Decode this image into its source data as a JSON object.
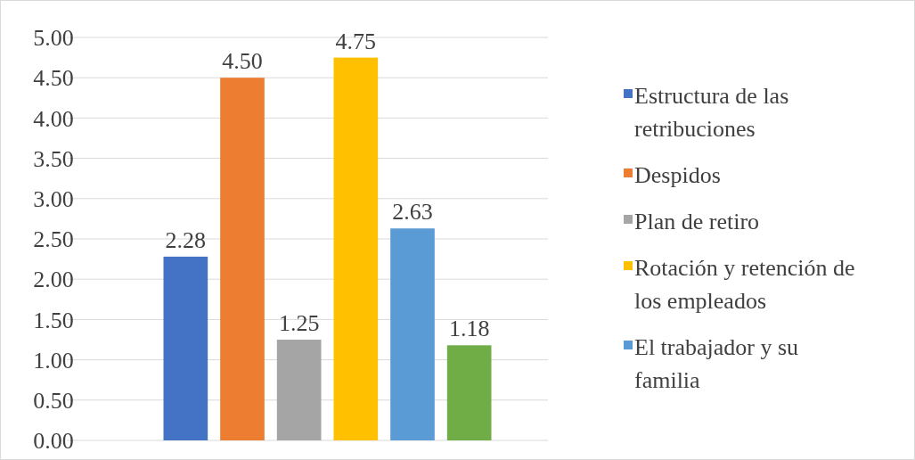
{
  "chart_data": {
    "type": "bar",
    "categories": [
      null
    ],
    "series": [
      {
        "name": "Estructura de las retribuciones",
        "color": "#4472c4",
        "values": [
          2.28
        ]
      },
      {
        "name": "Despidos",
        "color": "#ed7d31",
        "values": [
          4.5
        ]
      },
      {
        "name": "Plan de retiro",
        "color": "#a5a5a5",
        "values": [
          1.25
        ]
      },
      {
        "name": "Rotación y retención de los empleados",
        "color": "#ffc000",
        "values": [
          4.75
        ]
      },
      {
        "name": "El trabajador y su familia",
        "color": "#5b9bd5",
        "values": [
          2.63
        ]
      },
      {
        "color": "#70ad47",
        "values": [
          1.18
        ]
      }
    ],
    "ylim": [
      0,
      5
    ],
    "yticks": [
      {
        "value": 0,
        "label": "0.00"
      },
      {
        "value": 0.5,
        "label": "0.50"
      },
      {
        "value": 1,
        "label": "1.00"
      },
      {
        "value": 1.5,
        "label": "1.50"
      },
      {
        "value": 2,
        "label": "2.00"
      },
      {
        "value": 2.5,
        "label": "2.50"
      },
      {
        "value": 3,
        "label": "3.00"
      },
      {
        "value": 3.5,
        "label": "3.50"
      },
      {
        "value": 4,
        "label": "4.00"
      },
      {
        "value": 4.5,
        "label": "4.50"
      },
      {
        "value": 5,
        "label": "5.00"
      }
    ],
    "grid": "y",
    "legend": "right",
    "value_labels": [
      [
        "2.28"
      ],
      [
        "4.50"
      ],
      [
        "1.25"
      ],
      [
        "4.75"
      ],
      [
        "2.63"
      ],
      [
        "1.18"
      ]
    ]
  }
}
